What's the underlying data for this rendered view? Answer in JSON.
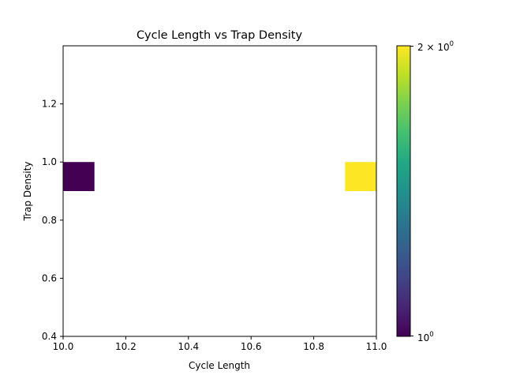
{
  "chart_data": {
    "type": "heatmap",
    "title": "Cycle Length vs Trap Density",
    "xlabel": "Cycle Length",
    "ylabel": "Trap Density",
    "xlim": [
      10.0,
      11.0
    ],
    "ylim": [
      0.4,
      1.4
    ],
    "x_ticks": [
      "10.0",
      "10.2",
      "10.4",
      "10.6",
      "10.8",
      "11.0"
    ],
    "y_ticks": [
      "0.4",
      "0.6",
      "0.8",
      "1.0",
      "1.2"
    ],
    "bins": [
      {
        "x0": 10.0,
        "x1": 10.1,
        "y0": 0.9,
        "y1": 1.0,
        "count": 1
      },
      {
        "x0": 10.9,
        "x1": 11.0,
        "y0": 0.9,
        "y1": 1.0,
        "count": 2
      }
    ],
    "colorbar": {
      "scale": "log",
      "colormap": "viridis",
      "min": 1,
      "max": 2,
      "tick_min_base": "10",
      "tick_min_exp": "0",
      "tick_max_base": "2 × 10",
      "tick_max_exp": "0"
    },
    "colors": {
      "low": "#440154",
      "high": "#fde725"
    },
    "grid": false
  }
}
